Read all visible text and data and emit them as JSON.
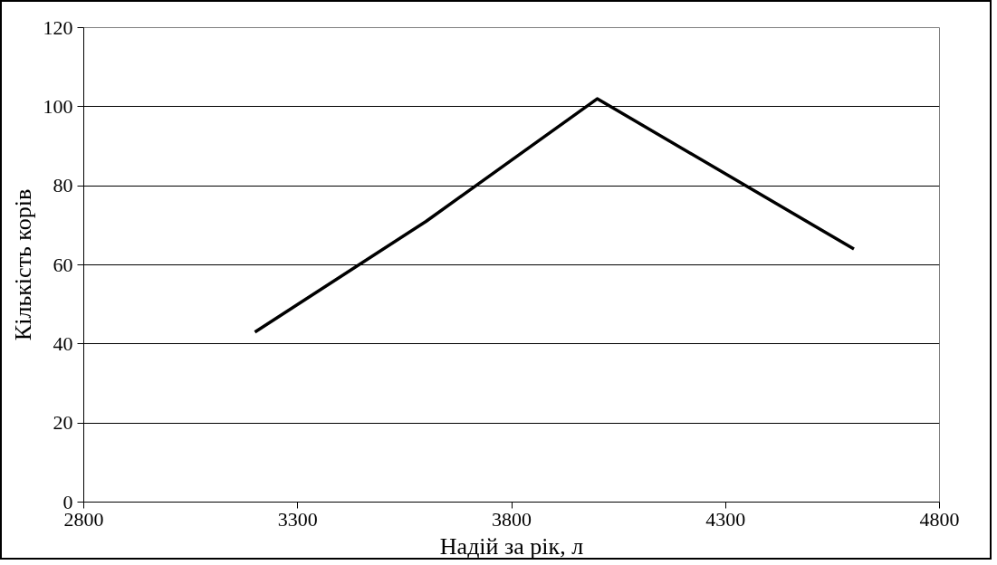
{
  "chart_data": {
    "type": "line",
    "xlabel": "Надій за рік, л",
    "ylabel": "Кількість корів",
    "x": [
      3200,
      3600,
      4000,
      4600
    ],
    "series": [
      {
        "color": "#000000",
        "values": [
          43,
          71,
          102,
          64
        ]
      }
    ],
    "xlim": [
      2800,
      4800
    ],
    "xticks": [
      2800,
      3300,
      3800,
      4300,
      4800
    ],
    "ylim": [
      0,
      120
    ],
    "yticks": [
      0,
      20,
      40,
      60,
      80,
      100,
      120
    ],
    "grid": "y",
    "marker": "none",
    "line_style": "solid"
  }
}
